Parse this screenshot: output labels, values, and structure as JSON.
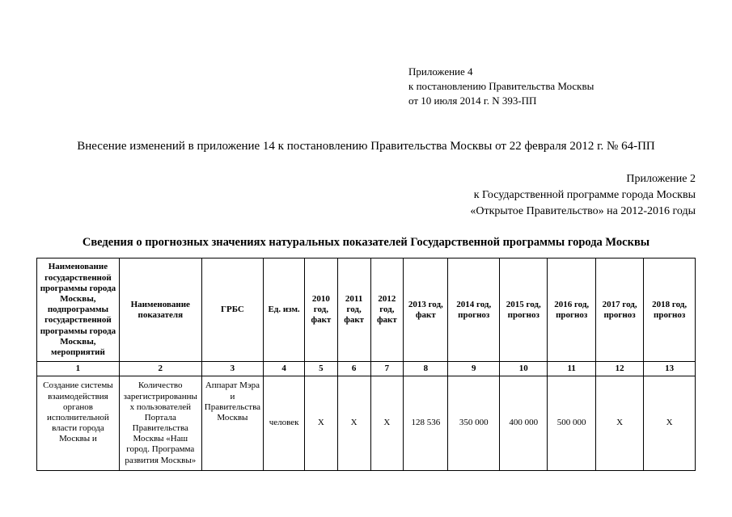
{
  "top_right": {
    "line1": "Приложение 4",
    "line2": "к постановлению Правительства Москвы",
    "line3": "от 10 июля 2014 г.  N 393-ПП"
  },
  "main_title": "Внесение изменений в приложение 14 к постановлению Правительства Москвы от 22 февраля 2012 г. № 64-ПП",
  "attach2": {
    "line1": "Приложение 2",
    "line2": "к Государственной программе города Москвы",
    "line3": "«Открытое Правительство» на 2012-2016 годы"
  },
  "section_title": "Сведения о прогнозных значениях натуральных показателей Государственной программы города Москвы",
  "headers": {
    "c1": "Наименование государственной программы города Москвы, подпрограммы государственной программы города Москвы, мероприятий",
    "c2": "Наименование показателя",
    "c3": "ГРБС",
    "c4": "Ед. изм.",
    "c5": "2010 год, факт",
    "c6": "2011 год, факт",
    "c7": "2012 год, факт",
    "c8": "2013 год, факт",
    "c9": "2014 год, прогноз",
    "c10": "2015 год, прогноз",
    "c11": "2016 год, прогноз",
    "c12": "2017 год, прогноз",
    "c13": "2018 год, прогноз"
  },
  "numrow": {
    "n1": "1",
    "n2": "2",
    "n3": "3",
    "n4": "4",
    "n5": "5",
    "n6": "6",
    "n7": "7",
    "n8": "8",
    "n9": "9",
    "n10": "10",
    "n11": "11",
    "n12": "12",
    "n13": "13"
  },
  "row1": {
    "c1": "Создание системы взаимодействия органов исполнительной власти города Москвы и",
    "c2": "Количество зарегистрированных пользователей Портала Правительства Москвы «Наш город. Программа развития Москвы»",
    "c3": "Аппарат Мэра и Правительства Москвы",
    "c4": "человек",
    "c5": "X",
    "c6": "X",
    "c7": "X",
    "c8": "128 536",
    "c9": "350 000",
    "c10": "400 000",
    "c11": "500 000",
    "c12": "X",
    "c13": "X"
  }
}
